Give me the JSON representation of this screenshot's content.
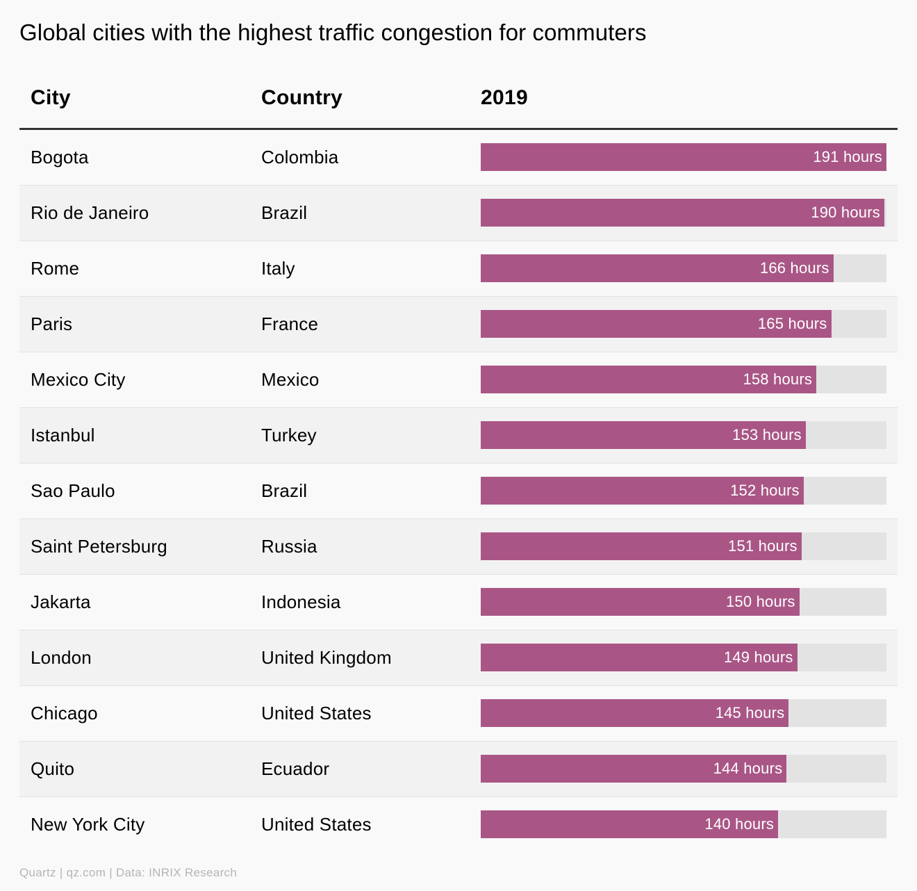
{
  "chart_data": {
    "type": "table",
    "title": "Global cities with the highest traffic congestion for commuters",
    "columns": [
      "City",
      "Country",
      "2019"
    ],
    "unit": "hours",
    "xlim": [
      0,
      191
    ],
    "rows": [
      {
        "city": "Bogota",
        "country": "Colombia",
        "value": 191,
        "label": "191 hours"
      },
      {
        "city": "Rio de Janeiro",
        "country": "Brazil",
        "value": 190,
        "label": "190 hours"
      },
      {
        "city": "Rome",
        "country": "Italy",
        "value": 166,
        "label": "166 hours"
      },
      {
        "city": "Paris",
        "country": "France",
        "value": 165,
        "label": "165 hours"
      },
      {
        "city": "Mexico City",
        "country": "Mexico",
        "value": 158,
        "label": "158 hours"
      },
      {
        "city": "Istanbul",
        "country": "Turkey",
        "value": 153,
        "label": "153 hours"
      },
      {
        "city": "Sao Paulo",
        "country": "Brazil",
        "value": 152,
        "label": "152 hours"
      },
      {
        "city": "Saint Petersburg",
        "country": "Russia",
        "value": 151,
        "label": "151 hours"
      },
      {
        "city": "Jakarta",
        "country": "Indonesia",
        "value": 150,
        "label": "150 hours"
      },
      {
        "city": "London",
        "country": "United Kingdom",
        "value": 149,
        "label": "149 hours"
      },
      {
        "city": "Chicago",
        "country": "United States",
        "value": 145,
        "label": "145 hours"
      },
      {
        "city": "Quito",
        "country": "Ecuador",
        "value": 144,
        "label": "144 hours"
      },
      {
        "city": "New York City",
        "country": "United States",
        "value": 140,
        "label": "140 hours"
      }
    ],
    "bar_color": "#a95686",
    "track_color": "#e3e3e3"
  },
  "source": "Quartz | qz.com | Data: INRIX Research"
}
